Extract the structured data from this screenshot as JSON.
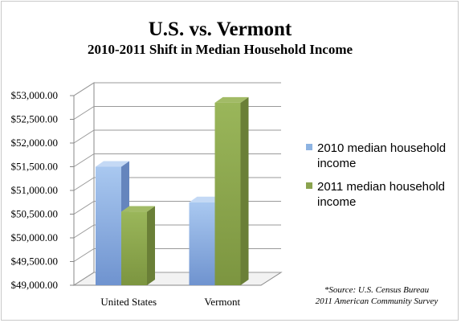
{
  "chart_data": {
    "type": "bar",
    "style": "3d-clustered-column",
    "title": "U.S. vs. Vermont",
    "subtitle": "2010-2011 Shift in Median Household Income",
    "categories": [
      "United States",
      "Vermont"
    ],
    "series": [
      {
        "name": "2010 median household income",
        "color": "#8db3e2",
        "values": [
          51500,
          50750
        ]
      },
      {
        "name": "2011 median household income",
        "color": "#8aa34e",
        "values": [
          50550,
          52850
        ]
      }
    ],
    "ylim": [
      49000,
      53000
    ],
    "yticks": [
      "$49,000.00",
      "$49,500.00",
      "$50,000.00",
      "$50,500.00",
      "$51,000.00",
      "$51,500.00",
      "$52,000.00",
      "$52,500.00",
      "$53,000.00"
    ],
    "grid": true,
    "legend": "right",
    "source_note": [
      "*Source: U.S. Census Bureau",
      "2011 American Community Survey"
    ]
  }
}
